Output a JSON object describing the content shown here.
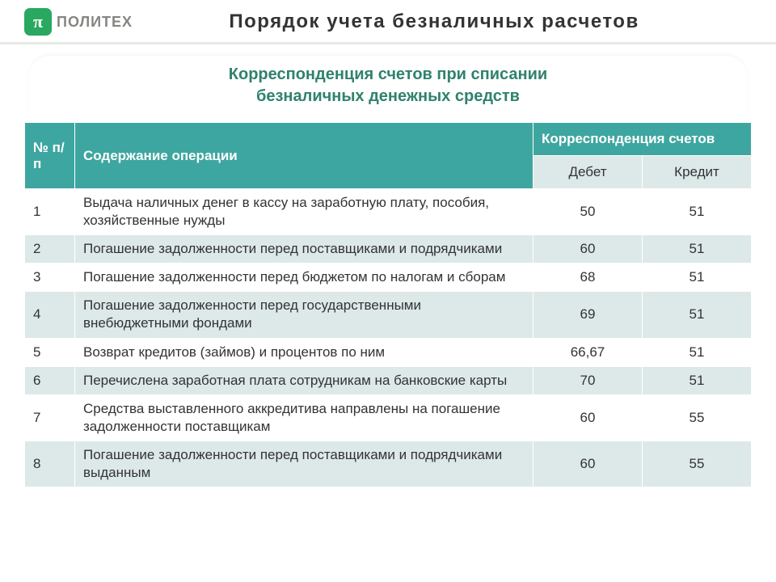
{
  "logo": {
    "glyph": "π",
    "text": "ПОЛИТЕХ"
  },
  "page_title": "Порядок учета безналичных расчетов",
  "section_title_l1": "Корреспонденция счетов при списании",
  "section_title_l2": "безналичных денежных средств",
  "table": {
    "head": {
      "num": "№ п/п",
      "desc": "Содержание операции",
      "corr": "Корреспонденция счетов",
      "debit": "Дебет",
      "credit": "Кредит"
    },
    "rows": [
      {
        "n": "1",
        "desc": "Выдача наличных денег  в кассу на заработную плату, пособия,  хозяйственные нужды",
        "debit": "50",
        "credit": "51"
      },
      {
        "n": "2",
        "desc": "Погашение задолженности перед поставщиками и подрядчиками",
        "debit": "60",
        "credit": "51"
      },
      {
        "n": "3",
        "desc": "Погашение задолженности перед бюджетом по налогам и сборам",
        "debit": "68",
        "credit": "51"
      },
      {
        "n": "4",
        "desc": "Погашение задолженности перед государственными внебюджетными фондами",
        "debit": "69",
        "credit": "51"
      },
      {
        "n": "5",
        "desc": "Возврат кредитов (займов) и процентов по ним",
        "debit": "66,67",
        "credit": "51"
      },
      {
        "n": "6",
        "desc": "Перечислена заработная плата сотрудникам на банковские карты",
        "debit": "70",
        "credit": "51"
      },
      {
        "n": "7",
        "desc": "Средства выставленного аккредитива направлены на погашение задолженности поставщикам",
        "debit": "60",
        "credit": "55"
      },
      {
        "n": "8",
        "desc": "Погашение задолженности перед поставщиками и подрядчиками выданным",
        "debit": "60",
        "credit": "55"
      }
    ]
  },
  "colors": {
    "brand_green": "#29a85f",
    "teal_header": "#3ea6a0",
    "row_alt": "#dce9e8",
    "section_text": "#2f826d"
  }
}
